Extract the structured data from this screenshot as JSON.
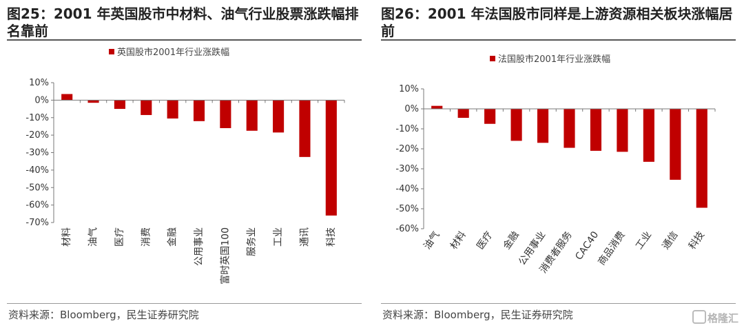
{
  "panels": [
    {
      "title": "图25：2001 年英国股市中材料、油气行业股票涨跌幅排名靠前",
      "source": "资料来源：Bloomberg，民生证券研究院"
    },
    {
      "title": "图26：2001 年法国股市同样是上游资源相关板块涨幅居前",
      "source": "资料来源：Bloomberg，民生证券研究院"
    }
  ],
  "watermark": "格隆汇",
  "chart_data": [
    {
      "type": "bar",
      "series_name": "英国股市2001年行业涨跌幅",
      "categories": [
        "材料",
        "油气",
        "医疗",
        "消费",
        "金融",
        "公用事业",
        "富时英国100",
        "服务业",
        "工业",
        "通讯",
        "科技"
      ],
      "values": [
        3.5,
        -1.5,
        -5,
        -8.5,
        -10.5,
        -12,
        -16,
        -17.5,
        -18.5,
        -32.5,
        -66
      ],
      "ylim": [
        -70,
        10
      ],
      "yticks": [
        10,
        0,
        -10,
        -20,
        -30,
        -40,
        -50,
        -60,
        -70
      ],
      "ytick_labels": [
        "10%",
        "0%",
        "-10%",
        "-20%",
        "-30%",
        "-40%",
        "-50%",
        "-60%",
        "-70%"
      ],
      "color": "#c00000",
      "legend": "top"
    },
    {
      "type": "bar",
      "series_name": "法国股市2001年行业涨跌幅",
      "categories": [
        "油气",
        "材料",
        "医疗",
        "金融",
        "公用事业",
        "消费者服务",
        "CAC40",
        "商品消费",
        "工业",
        "通信",
        "科技"
      ],
      "values": [
        1.5,
        -4.5,
        -7.5,
        -16,
        -17,
        -19.5,
        -21,
        -21.5,
        -26.5,
        -35.5,
        -49.5
      ],
      "ylim": [
        -60,
        10
      ],
      "yticks": [
        10,
        0,
        -10,
        -20,
        -30,
        -40,
        -50,
        -60
      ],
      "ytick_labels": [
        "10%",
        "0%",
        "-10%",
        "-20%",
        "-30%",
        "-40%",
        "-50%",
        "-60%"
      ],
      "color": "#c00000",
      "legend": "top"
    }
  ]
}
